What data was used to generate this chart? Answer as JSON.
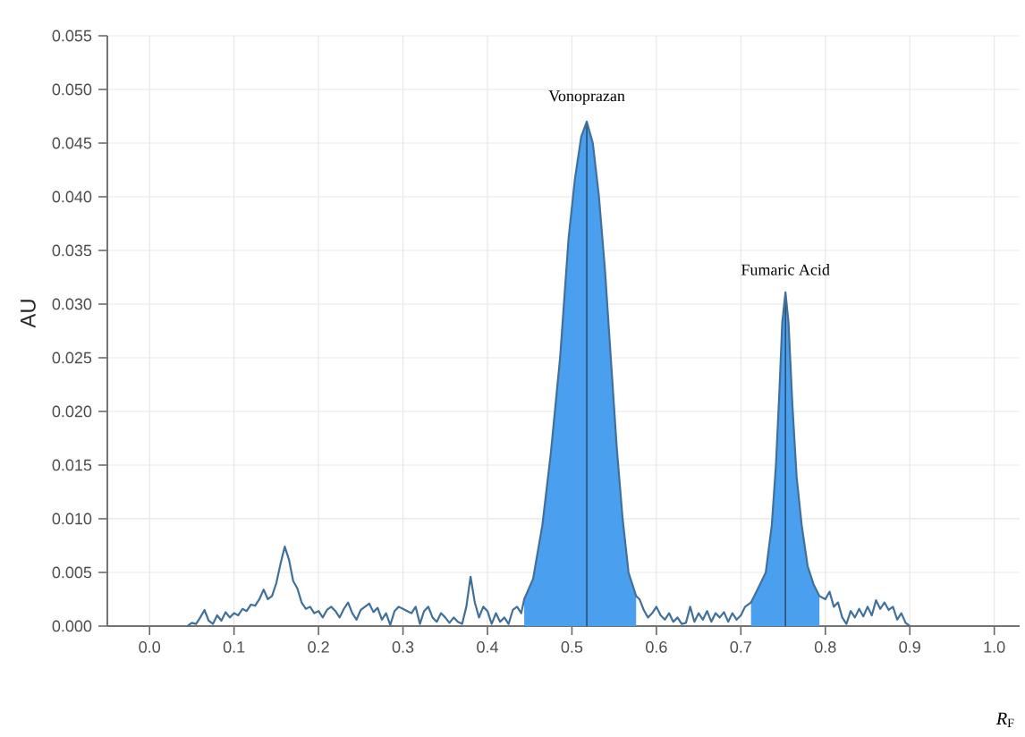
{
  "chart_data": {
    "type": "line",
    "xlabel": "*R*$_{F}$",
    "ylabel": "AU",
    "xlim": [
      -0.05,
      1.03
    ],
    "ylim": [
      0,
      0.055
    ],
    "xticks": [
      {
        "value": 0,
        "label": "0.0"
      },
      {
        "value": 0.1,
        "label": "0.1"
      },
      {
        "value": 0.2,
        "label": "0.2"
      },
      {
        "value": 0.3,
        "label": "0.3"
      },
      {
        "value": 0.4,
        "label": "0.4"
      },
      {
        "value": 0.5,
        "label": "0.5"
      },
      {
        "value": 0.6,
        "label": "0.6"
      },
      {
        "value": 0.7,
        "label": "0.7"
      },
      {
        "value": 0.8,
        "label": "0.8"
      },
      {
        "value": 0.9,
        "label": "0.9"
      },
      {
        "value": 1.0,
        "label": "1.0"
      }
    ],
    "yticks": [
      {
        "value": 0,
        "label": "0.000"
      },
      {
        "value": 0.005,
        "label": "0.005"
      },
      {
        "value": 0.01,
        "label": "0.010"
      },
      {
        "value": 0.015,
        "label": "0.015"
      },
      {
        "value": 0.02,
        "label": "0.020"
      },
      {
        "value": 0.025,
        "label": "0.025"
      },
      {
        "value": 0.03,
        "label": "0.030"
      },
      {
        "value": 0.035,
        "label": "0.035"
      },
      {
        "value": 0.04,
        "label": "0.040"
      },
      {
        "value": 0.045,
        "label": "0.045"
      },
      {
        "value": 0.05,
        "label": "0.050"
      },
      {
        "value": 0.055,
        "label": "0.055"
      }
    ],
    "grid": true,
    "marker": "none",
    "line_style": "solid",
    "series": [
      {
        "type": "area",
        "color": "#4aa0ee",
        "x": [
          0.4435,
          0.454,
          0.465,
          0.475,
          0.486,
          0.496,
          0.5036,
          0.511,
          0.5176,
          0.5247,
          0.532,
          0.539,
          0.546,
          0.553,
          0.56,
          0.567,
          0.576
        ],
        "values": [
          0.0025,
          0.0044,
          0.0094,
          0.0161,
          0.025,
          0.0361,
          0.0417,
          0.0456,
          0.047,
          0.045,
          0.04,
          0.0333,
          0.025,
          0.0167,
          0.01,
          0.005,
          0.0028
        ]
      },
      {
        "type": "area",
        "color": "#4aa0ee",
        "x": [
          0.712,
          0.719,
          0.7295,
          0.7366,
          0.7415,
          0.7458,
          0.749,
          0.7528,
          0.7564,
          0.761,
          0.766,
          0.772,
          0.779,
          0.786,
          0.793
        ],
        "values": [
          0.0022,
          0.0033,
          0.005,
          0.0094,
          0.015,
          0.0222,
          0.0283,
          0.0311,
          0.0283,
          0.0206,
          0.0139,
          0.0094,
          0.0056,
          0.0039,
          0.0028
        ]
      },
      {
        "color": "#41709a",
        "x": [
          0.045,
          0.05,
          0.055,
          0.06,
          0.065,
          0.07,
          0.075,
          0.08,
          0.085,
          0.09,
          0.095,
          0.1,
          0.105,
          0.11,
          0.115,
          0.12,
          0.125,
          0.13,
          0.135,
          0.14,
          0.145,
          0.15,
          0.155,
          0.16,
          0.165,
          0.17,
          0.175,
          0.18,
          0.185,
          0.19,
          0.195,
          0.2,
          0.205,
          0.21,
          0.215,
          0.22,
          0.225,
          0.23,
          0.235,
          0.24,
          0.245,
          0.25,
          0.255,
          0.26,
          0.265,
          0.27,
          0.275,
          0.28,
          0.285,
          0.29,
          0.295,
          0.3,
          0.305,
          0.31,
          0.315,
          0.32,
          0.325,
          0.33,
          0.335,
          0.34,
          0.345,
          0.35,
          0.355,
          0.36,
          0.365,
          0.37,
          0.375,
          0.38,
          0.385,
          0.39,
          0.395,
          0.4,
          0.405,
          0.41,
          0.415,
          0.42,
          0.425,
          0.43,
          0.435,
          0.44,
          0.4435,
          0.454,
          0.465,
          0.475,
          0.486,
          0.496,
          0.5036,
          0.511,
          0.5176,
          0.5247,
          0.532,
          0.539,
          0.546,
          0.553,
          0.56,
          0.567,
          0.576,
          0.58,
          0.585,
          0.59,
          0.595,
          0.6,
          0.605,
          0.61,
          0.615,
          0.62,
          0.625,
          0.63,
          0.635,
          0.64,
          0.645,
          0.65,
          0.655,
          0.66,
          0.665,
          0.67,
          0.675,
          0.68,
          0.685,
          0.69,
          0.695,
          0.7,
          0.705,
          0.712,
          0.719,
          0.7295,
          0.7366,
          0.7415,
          0.7458,
          0.749,
          0.7528,
          0.7564,
          0.761,
          0.766,
          0.772,
          0.779,
          0.786,
          0.793,
          0.8,
          0.805,
          0.81,
          0.815,
          0.82,
          0.825,
          0.83,
          0.835,
          0.84,
          0.845,
          0.85,
          0.855,
          0.86,
          0.865,
          0.87,
          0.875,
          0.88,
          0.885,
          0.89,
          0.895,
          0.9
        ],
        "values": [
          0,
          0.0003,
          0.0002,
          0.0008,
          0.0015,
          0.0005,
          0.0002,
          0.001,
          0.0005,
          0.0013,
          0.0008,
          0.0012,
          0.001,
          0.0016,
          0.0014,
          0.002,
          0.0019,
          0.0025,
          0.0034,
          0.0025,
          0.0028,
          0.004,
          0.0058,
          0.0074,
          0.0062,
          0.0042,
          0.0035,
          0.0022,
          0.0016,
          0.0018,
          0.0012,
          0.0014,
          0.0008,
          0.0015,
          0.0018,
          0.0014,
          0.0008,
          0.0016,
          0.0022,
          0.0012,
          0.0006,
          0.0015,
          0.0018,
          0.0021,
          0.0013,
          0.0017,
          0.0006,
          0.0012,
          0.0001,
          0.0014,
          0.0018,
          0.0016,
          0.0014,
          0.0012,
          0.0018,
          0.0002,
          0.0014,
          0.0018,
          0.0008,
          0.0004,
          0.0012,
          0.0008,
          0.0003,
          0.0008,
          0.0004,
          0.0002,
          0.0018,
          0.0046,
          0.0022,
          0.0008,
          0.0018,
          0.0014,
          0.0002,
          0.0012,
          0.0004,
          0.0008,
          0.0002,
          0.0015,
          0.0018,
          0.0012,
          0.0025,
          0.0044,
          0.0094,
          0.0161,
          0.025,
          0.0361,
          0.0417,
          0.0456,
          0.047,
          0.045,
          0.04,
          0.0333,
          0.025,
          0.0167,
          0.01,
          0.005,
          0.0028,
          0.0025,
          0.0015,
          0.0008,
          0.0012,
          0.0018,
          0.001,
          0.0006,
          0.0012,
          0.0004,
          0.0008,
          0.0002,
          0.0003,
          0.0018,
          0.0004,
          0.0012,
          0.0006,
          0.0014,
          0.0004,
          0.0012,
          0.0008,
          0.0013,
          0.0004,
          0.0012,
          0.0006,
          0.001,
          0.0018,
          0.0022,
          0.0033,
          0.005,
          0.0094,
          0.015,
          0.0222,
          0.0283,
          0.0311,
          0.0283,
          0.0206,
          0.0139,
          0.0094,
          0.0056,
          0.0039,
          0.0028,
          0.0025,
          0.0032,
          0.0018,
          0.0022,
          0.0008,
          0.0002,
          0.0014,
          0.0008,
          0.0016,
          0.0009,
          0.0018,
          0.001,
          0.0024,
          0.0016,
          0.0022,
          0.0015,
          0.0018,
          0.0006,
          0.0012,
          0.0003,
          0
        ]
      }
    ],
    "ref_lines": [
      {
        "axis": "x",
        "value": 0.5176,
        "color": "#2f4f6e"
      },
      {
        "axis": "x",
        "value": 0.7528,
        "color": "#2f4f6e"
      }
    ],
    "annotations": [
      {
        "text": "Vonoprazan",
        "x": 0.5176,
        "y": 0.047
      },
      {
        "text": "Fumaric Acid",
        "x": 0.7528,
        "y": 0.0311
      }
    ]
  }
}
